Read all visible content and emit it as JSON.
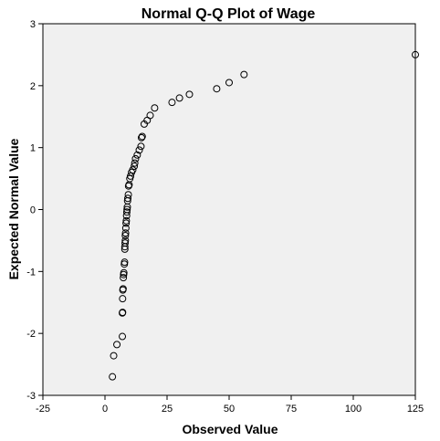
{
  "chart_data": {
    "type": "scatter",
    "title": "Normal Q-Q Plot of Wage",
    "xlabel": "Observed Value",
    "ylabel": "Expected Normal Value",
    "xlim": [
      -25,
      125
    ],
    "ylim": [
      -3,
      3
    ],
    "xticks": [
      "-25",
      "0",
      "25",
      "50",
      "75",
      "100",
      "125"
    ],
    "yticks": [
      "-3",
      "-2",
      "-1",
      "0",
      "1",
      "2",
      "3"
    ],
    "grid": false,
    "legend": "none",
    "plot_background": "#f0f0f0",
    "marker": "open-circle",
    "points": [
      {
        "x": 3.0,
        "y": -2.7
      },
      {
        "x": 3.5,
        "y": -2.36
      },
      {
        "x": 4.8,
        "y": -2.18
      },
      {
        "x": 7.0,
        "y": -2.05
      },
      {
        "x": 7.0,
        "y": -1.67
      },
      {
        "x": 7.1,
        "y": -1.66
      },
      {
        "x": 7.1,
        "y": -1.44
      },
      {
        "x": 7.2,
        "y": -1.3
      },
      {
        "x": 7.3,
        "y": -1.28
      },
      {
        "x": 7.4,
        "y": -1.1
      },
      {
        "x": 7.5,
        "y": -1.05
      },
      {
        "x": 7.6,
        "y": -1.02
      },
      {
        "x": 7.8,
        "y": -0.88
      },
      {
        "x": 7.9,
        "y": -0.85
      },
      {
        "x": 8.0,
        "y": -0.64
      },
      {
        "x": 8.0,
        "y": -0.6
      },
      {
        "x": 8.1,
        "y": -0.54
      },
      {
        "x": 8.2,
        "y": -0.5
      },
      {
        "x": 8.2,
        "y": -0.42
      },
      {
        "x": 8.3,
        "y": -0.38
      },
      {
        "x": 8.4,
        "y": -0.3
      },
      {
        "x": 8.5,
        "y": -0.22
      },
      {
        "x": 8.6,
        "y": -0.18
      },
      {
        "x": 8.7,
        "y": -0.1
      },
      {
        "x": 8.8,
        "y": -0.04
      },
      {
        "x": 8.9,
        "y": 0.0
      },
      {
        "x": 9.0,
        "y": 0.04
      },
      {
        "x": 9.1,
        "y": 0.14
      },
      {
        "x": 9.2,
        "y": 0.18
      },
      {
        "x": 9.4,
        "y": 0.24
      },
      {
        "x": 9.5,
        "y": 0.38
      },
      {
        "x": 9.7,
        "y": 0.4
      },
      {
        "x": 10.0,
        "y": 0.5
      },
      {
        "x": 10.3,
        "y": 0.54
      },
      {
        "x": 10.7,
        "y": 0.6
      },
      {
        "x": 11.2,
        "y": 0.64
      },
      {
        "x": 11.8,
        "y": 0.7
      },
      {
        "x": 12.0,
        "y": 0.75
      },
      {
        "x": 12.3,
        "y": 0.82
      },
      {
        "x": 13.0,
        "y": 0.88
      },
      {
        "x": 13.8,
        "y": 0.96
      },
      {
        "x": 14.5,
        "y": 1.02
      },
      {
        "x": 14.7,
        "y": 1.16
      },
      {
        "x": 15.0,
        "y": 1.18
      },
      {
        "x": 15.8,
        "y": 1.38
      },
      {
        "x": 17.0,
        "y": 1.44
      },
      {
        "x": 18.2,
        "y": 1.52
      },
      {
        "x": 20.0,
        "y": 1.64
      },
      {
        "x": 27.0,
        "y": 1.73
      },
      {
        "x": 30.0,
        "y": 1.8
      },
      {
        "x": 34.0,
        "y": 1.86
      },
      {
        "x": 45.0,
        "y": 1.95
      },
      {
        "x": 50.0,
        "y": 2.05
      },
      {
        "x": 56.0,
        "y": 2.18
      },
      {
        "x": 125.0,
        "y": 2.5
      }
    ]
  }
}
